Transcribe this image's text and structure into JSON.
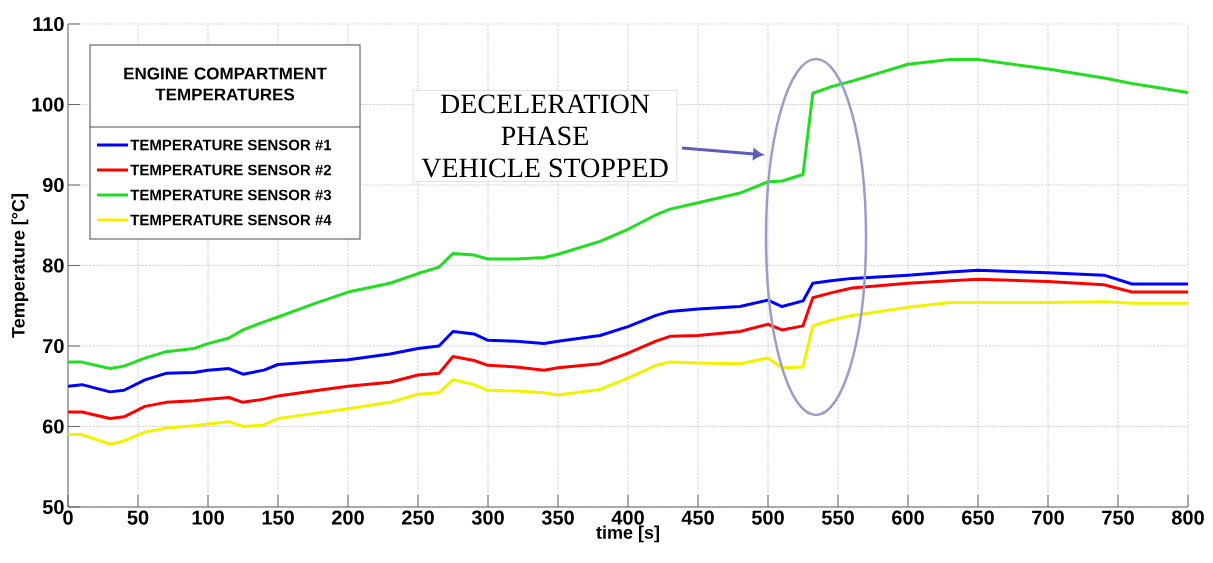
{
  "chart_data": {
    "type": "line",
    "xlabel": "time [s]",
    "ylabel": "Temperature [°C]",
    "legend_title": "ENGINE COMPARTMENT TEMPERATURES",
    "legend": "top left",
    "grid": true,
    "x": [
      0,
      10,
      30,
      40,
      55,
      70,
      90,
      100,
      115,
      125,
      140,
      150,
      175,
      200,
      230,
      250,
      265,
      275,
      290,
      300,
      320,
      340,
      350,
      380,
      400,
      420,
      430,
      450,
      480,
      500,
      510,
      525,
      532,
      545,
      560,
      600,
      630,
      650,
      700,
      740,
      760,
      800
    ],
    "series": [
      {
        "name": "TEMPERATURE SENSOR #1",
        "color": "#0000ff",
        "values": [
          65,
          65.2,
          64.3,
          64.5,
          65.8,
          66.6,
          66.7,
          67,
          67.2,
          66.5,
          67,
          67.7,
          68,
          68.3,
          69,
          69.7,
          70,
          71.8,
          71.5,
          70.7,
          70.6,
          70.3,
          70.6,
          71.3,
          72.4,
          73.8,
          74.3,
          74.6,
          74.9,
          75.7,
          74.9,
          75.6,
          77.8,
          78.1,
          78.4,
          78.8,
          79.2,
          79.4,
          79.1,
          78.8,
          77.7,
          77.7
        ]
      },
      {
        "name": "TEMPERATURE SENSOR #2",
        "color": "#ff0000",
        "values": [
          61.8,
          61.8,
          61,
          61.2,
          62.5,
          63,
          63.2,
          63.4,
          63.6,
          63,
          63.4,
          63.8,
          64.4,
          65,
          65.5,
          66.4,
          66.6,
          68.7,
          68.2,
          67.6,
          67.4,
          67,
          67.3,
          67.8,
          69.1,
          70.6,
          71.2,
          71.3,
          71.8,
          72.7,
          72,
          72.5,
          76,
          76.6,
          77.2,
          77.8,
          78.1,
          78.3,
          78,
          77.6,
          76.7,
          76.7
        ]
      },
      {
        "name": "TEMPERATURE SENSOR #3",
        "color": "#22dd22",
        "values": [
          68,
          68,
          67.2,
          67.5,
          68.5,
          69.3,
          69.7,
          70.3,
          71,
          72,
          73,
          73.6,
          75.2,
          76.7,
          77.8,
          79,
          79.8,
          81.5,
          81.3,
          80.8,
          80.8,
          81,
          81.4,
          83,
          84.5,
          86.3,
          87,
          87.8,
          89,
          90.4,
          90.5,
          91.3,
          101.4,
          102.2,
          102.9,
          105,
          105.6,
          105.6,
          104.4,
          103.3,
          102.6,
          101.5
        ]
      },
      {
        "name": "TEMPERATURE SENSOR #4",
        "color": "#f2f200",
        "values": [
          59,
          59,
          57.8,
          58.2,
          59.3,
          59.8,
          60.1,
          60.3,
          60.6,
          60,
          60.2,
          61,
          61.6,
          62.2,
          63,
          64,
          64.2,
          65.8,
          65.2,
          64.5,
          64.4,
          64.2,
          63.9,
          64.6,
          66,
          67.6,
          68,
          67.9,
          67.8,
          68.5,
          67.3,
          67.4,
          72.5,
          73.2,
          73.8,
          74.8,
          75.4,
          75.4,
          75.4,
          75.5,
          75.3,
          75.3
        ]
      }
    ],
    "xlim": [
      0,
      800
    ],
    "ylim": [
      50,
      110
    ],
    "xticks": [
      0,
      50,
      100,
      150,
      200,
      250,
      300,
      350,
      400,
      450,
      500,
      550,
      600,
      650,
      700,
      750,
      800
    ],
    "yticks": [
      50,
      60,
      70,
      80,
      90,
      100,
      110
    ],
    "annotations": [
      "DECELERATION",
      "PHASE",
      "VEHICLE STOPPED"
    ]
  }
}
